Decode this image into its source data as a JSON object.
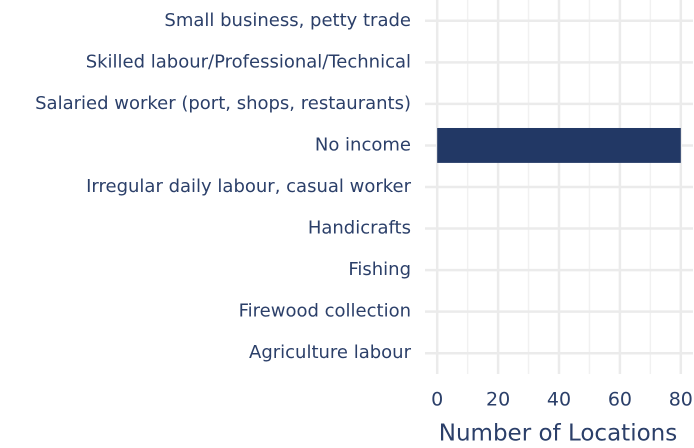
{
  "chart_data": {
    "type": "bar",
    "orientation": "horizontal",
    "x_label": "Number of Locations",
    "categories": [
      "Small business, petty trade",
      "Skilled labour/Professional/Technical",
      "Salaried worker (port, shops, restaurants)",
      "No income",
      "Irregular daily labour, casual worker",
      "Handicrafts",
      "Fishing",
      "Firewood collection",
      "Agriculture labour"
    ],
    "values": [
      0,
      0,
      0,
      80,
      0,
      0,
      0,
      0,
      0
    ],
    "color": "#223865",
    "xlim": [
      -4,
      84
    ],
    "xticks": [
      0,
      20,
      40,
      60,
      80
    ],
    "grid": true
  }
}
